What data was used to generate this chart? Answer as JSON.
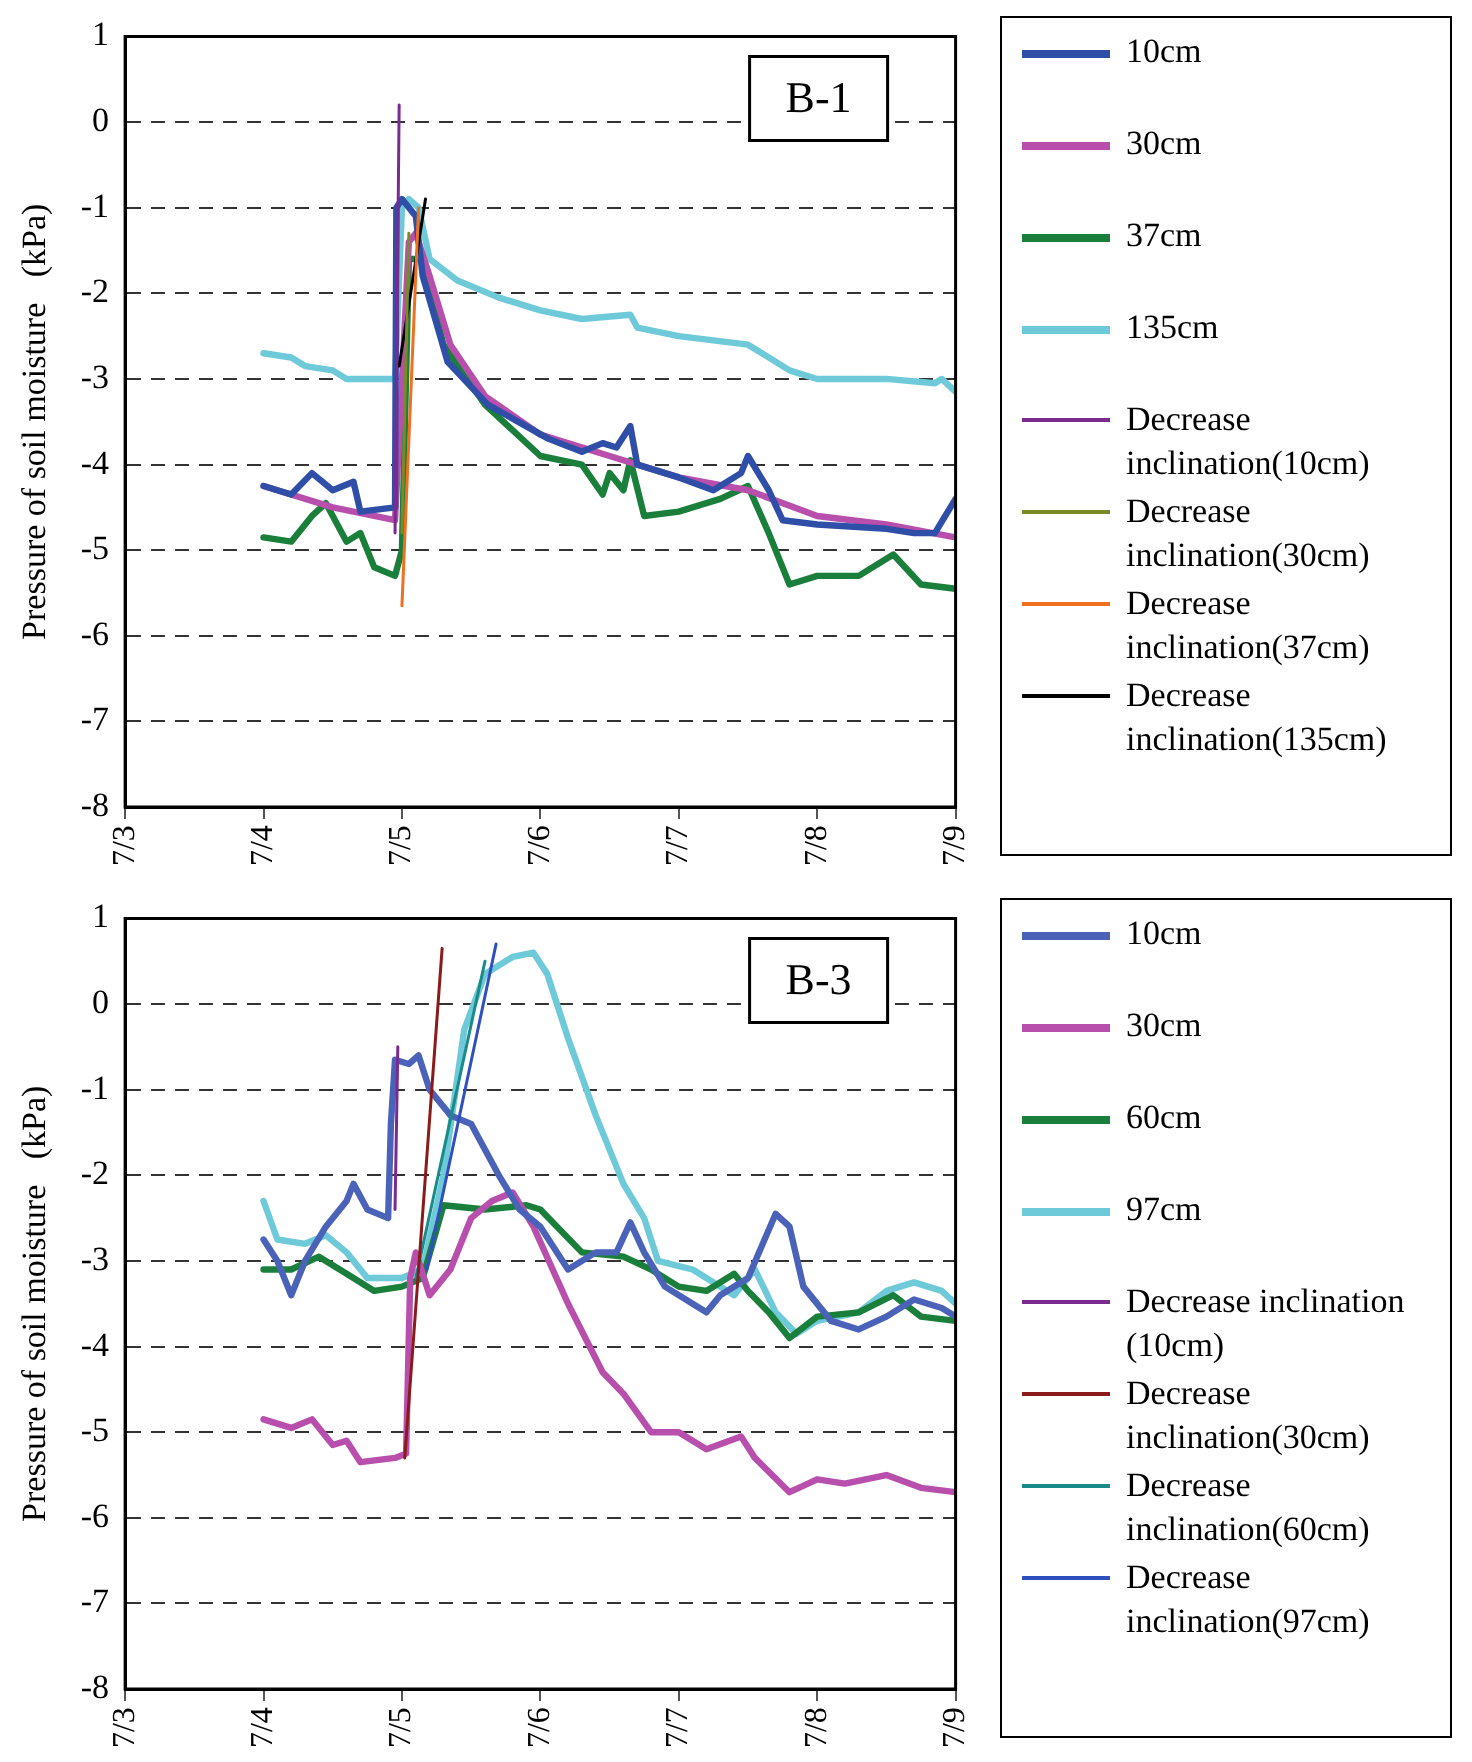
{
  "chart_data": [
    {
      "type": "line",
      "annotations": [
        "B-1"
      ],
      "ylabel": "Pressure of soil moisture   (kPa)",
      "xlim": [
        "--07-03",
        "--07-09"
      ],
      "xticks": [
        {
          "value": "--07-03",
          "label": "7/3"
        },
        {
          "value": "--07-04",
          "label": "7/4"
        },
        {
          "value": "--07-05",
          "label": "7/5"
        },
        {
          "value": "--07-06",
          "label": "7/6"
        },
        {
          "value": "--07-07",
          "label": "7/7"
        },
        {
          "value": "--07-08",
          "label": "7/8"
        },
        {
          "value": "--07-09",
          "label": "7/9"
        }
      ],
      "ylim": [
        -8,
        1
      ],
      "yticks": [
        -8,
        -7,
        -6,
        -5,
        -4,
        -3,
        -2,
        -1,
        0,
        1
      ],
      "grid": "y",
      "legend": "right",
      "marker": "none",
      "line_style": "solid",
      "series": [
        {
          "name": "10cm",
          "color": "#2e4ea8",
          "x": [
            "--07-04T00:00",
            "--07-04T04:48",
            "--07-04T08:24",
            "--07-04T12:00",
            "--07-04T15:36",
            "--07-04T16:48",
            "--07-04T22:48",
            "--07-04T23:02",
            "--07-05T00:00",
            "--07-05T02:24",
            "--07-05T03:36",
            "--07-05T07:55",
            "--07-05T14:53",
            "--07-06T01:26",
            "--07-06T07:12",
            "--07-06T10:48",
            "--07-06T13:12",
            "--07-06T15:36",
            "--07-06T16:48",
            "--07-07T00:00",
            "--07-07T06:00",
            "--07-07T10:48",
            "--07-07T12:00",
            "--07-07T15:36",
            "--07-07T18:00",
            "--07-08T00:00",
            "--07-08T12:00",
            "--07-08T16:48",
            "--07-08T20:24",
            "--07-09T00:00"
          ],
          "values": [
            -4.25,
            -4.35,
            -4.1,
            -4.3,
            -4.2,
            -4.55,
            -4.5,
            -1.0,
            -0.9,
            -1.1,
            -1.8,
            -2.8,
            -3.3,
            -3.7,
            -3.85,
            -3.75,
            -3.8,
            -3.55,
            -4.0,
            -4.15,
            -4.3,
            -4.1,
            -3.9,
            -4.3,
            -4.65,
            -4.7,
            -4.75,
            -4.8,
            -4.8,
            -4.4
          ]
        },
        {
          "name": "30cm",
          "color": "#b84fac",
          "x": [
            "--07-04T00:00",
            "--07-04T12:00",
            "--07-04T22:48",
            "--07-05T01:12",
            "--07-05T02:24",
            "--07-05T04:48",
            "--07-05T08:24",
            "--07-05T14:24",
            "--07-06T00:00",
            "--07-06T12:00",
            "--07-07T00:00",
            "--07-07T12:00",
            "--07-08T00:00",
            "--07-08T12:00",
            "--07-09T00:00"
          ],
          "values": [
            -4.25,
            -4.5,
            -4.65,
            -1.4,
            -1.3,
            -1.8,
            -2.6,
            -3.2,
            -3.65,
            -3.9,
            -4.15,
            -4.3,
            -4.6,
            -4.7,
            -4.85
          ]
        },
        {
          "name": "37cm",
          "color": "#1a7f3a",
          "x": [
            "--07-04T00:00",
            "--07-04T04:48",
            "--07-04T08:24",
            "--07-04T10:48",
            "--07-04T14:24",
            "--07-04T16:48",
            "--07-04T19:12",
            "--07-04T22:48",
            "--07-05T00:00",
            "--07-05T01:12",
            "--07-05T03:36",
            "--07-05T07:12",
            "--07-05T14:24",
            "--07-06T00:00",
            "--07-06T07:12",
            "--07-06T10:48",
            "--07-06T12:00",
            "--07-06T14:24",
            "--07-06T15:36",
            "--07-06T18:00",
            "--07-07T00:00",
            "--07-07T07:12",
            "--07-07T12:00",
            "--07-07T15:36",
            "--07-07T19:12",
            "--07-08T00:00",
            "--07-08T07:12",
            "--07-08T13:12",
            "--07-08T18:00",
            "--07-09T00:00"
          ],
          "values": [
            -4.85,
            -4.9,
            -4.6,
            -4.45,
            -4.9,
            -4.8,
            -5.2,
            -5.3,
            -5.0,
            -1.6,
            -1.6,
            -2.6,
            -3.3,
            -3.9,
            -4.0,
            -4.35,
            -4.1,
            -4.3,
            -3.95,
            -4.6,
            -4.55,
            -4.4,
            -4.25,
            -4.8,
            -5.4,
            -5.3,
            -5.3,
            -5.05,
            -5.4,
            -5.45
          ]
        },
        {
          "name": "135cm",
          "color": "#6ecad8",
          "x": [
            "--07-04T00:00",
            "--07-04T04:48",
            "--07-04T07:12",
            "--07-04T12:00",
            "--07-04T14:24",
            "--07-04T22:48",
            "--07-05T00:00",
            "--07-05T01:12",
            "--07-05T02:53",
            "--07-05T04:48",
            "--07-05T09:36",
            "--07-05T16:48",
            "--07-06T00:00",
            "--07-06T07:12",
            "--07-06T15:36",
            "--07-06T16:48",
            "--07-07T00:00",
            "--07-07T12:00",
            "--07-07T19:12",
            "--07-08T00:00",
            "--07-08T12:00",
            "--07-08T20:24",
            "--07-08T21:36",
            "--07-09T00:00"
          ],
          "values": [
            -2.7,
            -2.75,
            -2.85,
            -2.9,
            -3.0,
            -3.0,
            -1.0,
            -0.9,
            -1.0,
            -1.6,
            -1.85,
            -2.05,
            -2.2,
            -2.3,
            -2.25,
            -2.4,
            -2.5,
            -2.6,
            -2.9,
            -3.0,
            -3.0,
            -3.05,
            -3.0,
            -3.15
          ]
        },
        {
          "name": "Decrease inclination(10cm)",
          "color": "#7b2a90",
          "x": [
            "--07-04T22:48",
            "--07-04T23:31"
          ],
          "values": [
            -4.8,
            0.2
          ]
        },
        {
          "name": "Decrease inclination(30cm)",
          "color": "#7a8a2a",
          "x": [
            "--07-05T00:00",
            "--07-05T01:12"
          ],
          "values": [
            -4.8,
            -1.3
          ]
        },
        {
          "name": "Decrease inclination(37cm)",
          "color": "#f07020",
          "x": [
            "--07-05T00:00",
            "--07-05T02:53"
          ],
          "values": [
            -5.65,
            -1.0
          ]
        },
        {
          "name": "Decrease inclination(135cm)",
          "color": "#000000",
          "x": [
            "--07-04T23:31",
            "--07-05T04:05"
          ],
          "values": [
            -2.85,
            -0.9
          ]
        }
      ]
    },
    {
      "type": "line",
      "annotations": [
        "B-3"
      ],
      "ylabel": "Pressure of soil moisture   (kPa)",
      "xlim": [
        "--07-03",
        "--07-09"
      ],
      "xticks": [
        {
          "value": "--07-03",
          "label": "7/3"
        },
        {
          "value": "--07-04",
          "label": "7/4"
        },
        {
          "value": "--07-05",
          "label": "7/5"
        },
        {
          "value": "--07-06",
          "label": "7/6"
        },
        {
          "value": "--07-07",
          "label": "7/7"
        },
        {
          "value": "--07-08",
          "label": "7/8"
        },
        {
          "value": "--07-09",
          "label": "7/9"
        }
      ],
      "ylim": [
        -8,
        1
      ],
      "yticks": [
        -8,
        -7,
        -6,
        -5,
        -4,
        -3,
        -2,
        -1,
        0,
        1
      ],
      "grid": "y",
      "legend": "right",
      "marker": "none",
      "line_style": "solid",
      "series": [
        {
          "name": "10cm",
          "color": "#4a63b8",
          "x": [
            "--07-04T00:00",
            "--07-04T02:24",
            "--07-04T04:48",
            "--07-04T07:12",
            "--07-04T10:48",
            "--07-04T14:24",
            "--07-04T15:36",
            "--07-04T18:00",
            "--07-04T21:36",
            "--07-04T22:05",
            "--07-04T22:48",
            "--07-05T01:12",
            "--07-05T02:53",
            "--07-05T04:48",
            "--07-05T08:24",
            "--07-05T12:00",
            "--07-05T16:48",
            "--07-05T20:24",
            "--07-06T00:00",
            "--07-06T04:48",
            "--07-06T09:36",
            "--07-06T13:12",
            "--07-06T15:36",
            "--07-06T18:00",
            "--07-06T21:36",
            "--07-07T02:24",
            "--07-07T04:48",
            "--07-07T07:12",
            "--07-07T12:00",
            "--07-07T16:48",
            "--07-07T19:12",
            "--07-07T21:36",
            "--07-08T02:24",
            "--07-08T07:12",
            "--07-08T12:00",
            "--07-08T16:48",
            "--07-08T21:36",
            "--07-09T00:00"
          ],
          "values": [
            -2.75,
            -3.0,
            -3.4,
            -3.0,
            -2.6,
            -2.3,
            -2.1,
            -2.4,
            -2.5,
            -1.4,
            -0.65,
            -0.7,
            -0.6,
            -1.0,
            -1.3,
            -1.4,
            -2.0,
            -2.4,
            -2.6,
            -3.1,
            -2.9,
            -2.9,
            -2.55,
            -2.9,
            -3.3,
            -3.5,
            -3.6,
            -3.4,
            -3.2,
            -2.45,
            -2.6,
            -3.3,
            -3.7,
            -3.8,
            -3.65,
            -3.45,
            -3.55,
            -3.65
          ]
        },
        {
          "name": "30cm",
          "color": "#b84fac",
          "x": [
            "--07-04T00:00",
            "--07-04T04:48",
            "--07-04T08:24",
            "--07-04T12:00",
            "--07-04T14:24",
            "--07-04T16:48",
            "--07-04T22:48",
            "--07-05T00:43",
            "--07-05T01:26",
            "--07-05T02:24",
            "--07-05T04:48",
            "--07-05T08:24",
            "--07-05T12:00",
            "--07-05T15:36",
            "--07-05T19:12",
            "--07-05T22:48",
            "--07-06T04:48",
            "--07-06T10:48",
            "--07-06T14:24",
            "--07-06T19:12",
            "--07-07T00:00",
            "--07-07T04:48",
            "--07-07T10:48",
            "--07-07T13:12",
            "--07-07T19:12",
            "--07-08T00:00",
            "--07-08T04:48",
            "--07-08T12:00",
            "--07-08T18:00",
            "--07-09T00:00"
          ],
          "values": [
            -4.85,
            -4.95,
            -4.85,
            -5.15,
            -5.1,
            -5.35,
            -5.3,
            -5.25,
            -3.2,
            -2.9,
            -3.4,
            -3.1,
            -2.5,
            -2.3,
            -2.2,
            -2.6,
            -3.5,
            -4.3,
            -4.55,
            -5.0,
            -5.0,
            -5.2,
            -5.05,
            -5.3,
            -5.7,
            -5.55,
            -5.6,
            -5.5,
            -5.65,
            -5.7
          ]
        },
        {
          "name": "60cm",
          "color": "#1a7f3a",
          "x": [
            "--07-04T00:00",
            "--07-04T04:48",
            "--07-04T09:36",
            "--07-04T14:24",
            "--07-04T19:12",
            "--07-05T00:00",
            "--07-05T03:36",
            "--07-05T07:12",
            "--07-05T14:24",
            "--07-05T21:36",
            "--07-06T00:00",
            "--07-06T07:12",
            "--07-06T14:24",
            "--07-06T19:12",
            "--07-07T00:00",
            "--07-07T04:48",
            "--07-07T09:36",
            "--07-07T12:00",
            "--07-07T15:36",
            "--07-07T19:12",
            "--07-08T00:00",
            "--07-08T07:12",
            "--07-08T13:12",
            "--07-08T18:00",
            "--07-09T00:00"
          ],
          "values": [
            -3.1,
            -3.1,
            -2.95,
            -3.15,
            -3.35,
            -3.3,
            -3.2,
            -2.35,
            -2.4,
            -2.35,
            -2.4,
            -2.9,
            -2.95,
            -3.1,
            -3.3,
            -3.35,
            -3.15,
            -3.35,
            -3.6,
            -3.9,
            -3.65,
            -3.6,
            -3.4,
            -3.65,
            -3.7
          ]
        },
        {
          "name": "97cm",
          "color": "#6ecad8",
          "x": [
            "--07-04T00:00",
            "--07-04T02:24",
            "--07-04T07:12",
            "--07-04T10:48",
            "--07-04T14:24",
            "--07-04T18:00",
            "--07-05T00:00",
            "--07-05T03:36",
            "--07-05T07:12",
            "--07-05T10:48",
            "--07-05T14:24",
            "--07-05T19:12",
            "--07-05T22:48",
            "--07-06T01:12",
            "--07-06T04:48",
            "--07-06T09:36",
            "--07-06T14:24",
            "--07-06T18:00",
            "--07-06T20:24",
            "--07-07T02:24",
            "--07-07T09:36",
            "--07-07T13:12",
            "--07-07T16:48",
            "--07-07T20:24",
            "--07-08T00:00",
            "--07-08T07:12",
            "--07-08T12:00",
            "--07-08T16:48",
            "--07-08T21:36",
            "--07-09T00:00"
          ],
          "values": [
            -2.3,
            -2.75,
            -2.8,
            -2.7,
            -2.9,
            -3.2,
            -3.2,
            -3.1,
            -2.0,
            -0.3,
            0.35,
            0.55,
            0.6,
            0.35,
            -0.4,
            -1.3,
            -2.1,
            -2.5,
            -3.0,
            -3.1,
            -3.4,
            -3.1,
            -3.6,
            -3.85,
            -3.7,
            -3.6,
            -3.35,
            -3.25,
            -3.35,
            -3.5
          ]
        },
        {
          "name": "Decrease inclination (10cm)",
          "color": "#7b2a90",
          "x": [
            "--07-04T22:48",
            "--07-04T23:17"
          ],
          "values": [
            -2.4,
            -0.5
          ]
        },
        {
          "name": "Decrease inclination(30cm)",
          "color": "#8b1a1a",
          "x": [
            "--07-05T00:29",
            "--07-05T06:58"
          ],
          "values": [
            -5.3,
            0.65
          ]
        },
        {
          "name": "Decrease inclination(60cm)",
          "color": "#1a8a8a",
          "x": [
            "--07-05T02:24",
            "--07-05T14:24"
          ],
          "values": [
            -3.2,
            0.5
          ]
        },
        {
          "name": "Decrease inclination(97cm)",
          "color": "#3050c0",
          "x": [
            "--07-05T04:19",
            "--07-05T16:19"
          ],
          "values": [
            -3.1,
            0.7
          ]
        }
      ]
    }
  ]
}
